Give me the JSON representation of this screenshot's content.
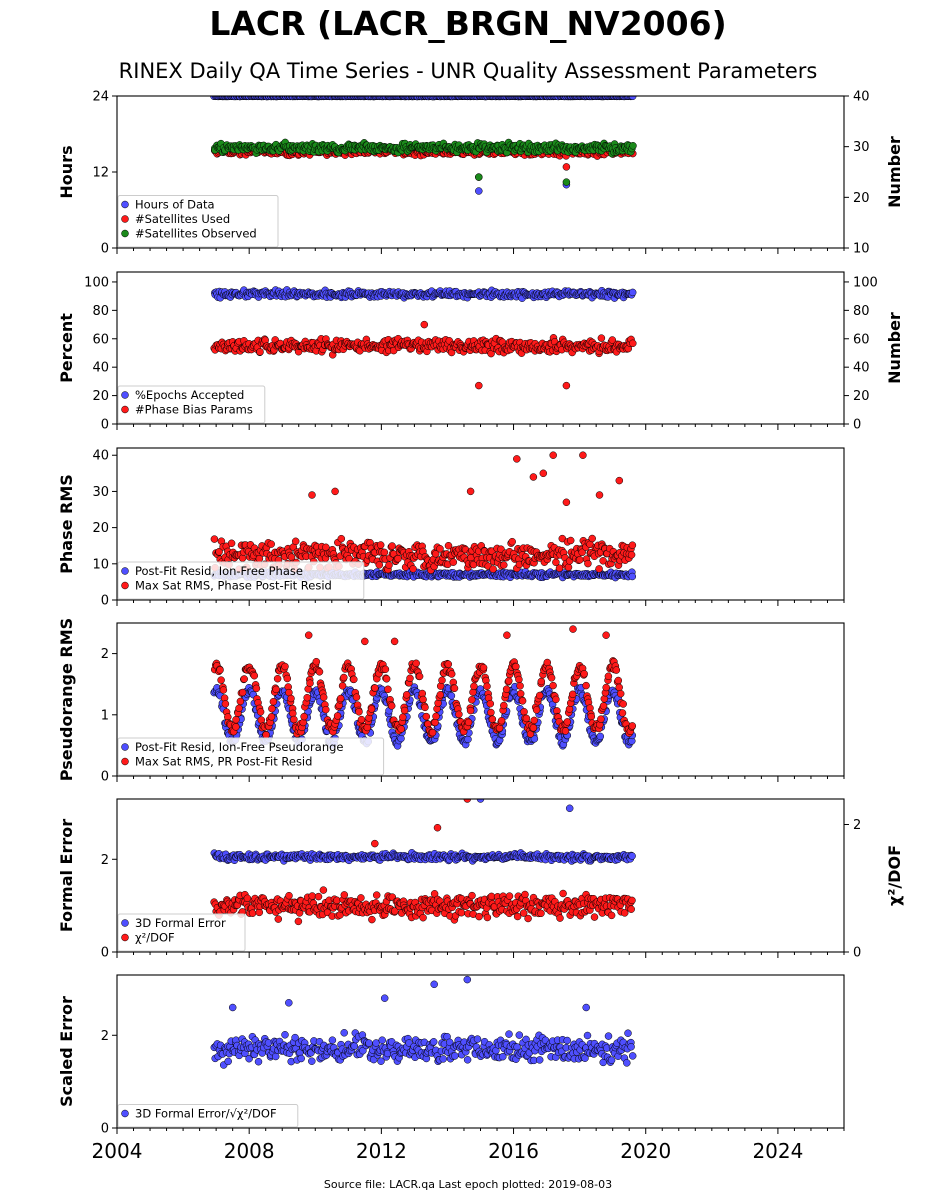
{
  "title": "LACR (LACR_BRGN_NV2006)",
  "subtitle": "RINEX Daily QA Time Series - UNR Quality Assessment Parameters",
  "footer": "Source file: LACR.qa Last epoch plotted: 2019-08-03",
  "colors": {
    "blue": "#4f4fff",
    "red": "#ff1a1a",
    "green": "#1b8a1b",
    "edge": "#000000"
  },
  "chart_data": [
    {
      "type": "scatter",
      "ylabel": "Hours",
      "ylabel_right": "Number",
      "xlim": [
        2004,
        2026
      ],
      "ylim": [
        0,
        24
      ],
      "ylim_right": [
        10,
        40
      ],
      "yticks": [
        "0",
        "12",
        "24"
      ],
      "yticks_right": [
        "10",
        "20",
        "30",
        "40"
      ],
      "legend": "lower-left",
      "series": [
        {
          "name": "Hours of Data",
          "color": "blue",
          "axis": "left",
          "band": [
            23.9,
            24
          ],
          "outliers": [
            [
              2014.95,
              9
            ],
            [
              2017.6,
              10
            ]
          ]
        },
        {
          "name": "#Satellites Used",
          "color": "red",
          "axis": "right",
          "band": [
            28,
            30
          ],
          "outliers": [
            [
              2009.8,
              30
            ],
            [
              2014.95,
              24
            ],
            [
              2017.6,
              26
            ]
          ]
        },
        {
          "name": "#Satellites Observed",
          "color": "green",
          "axis": "right",
          "band": [
            28.5,
            31
          ],
          "outliers": [
            [
              2014.95,
              24
            ],
            [
              2017.6,
              23
            ]
          ]
        }
      ]
    },
    {
      "type": "scatter",
      "ylabel": "Percent",
      "ylabel_right": "Number",
      "xlim": [
        2004,
        2026
      ],
      "ylim": [
        0,
        107
      ],
      "ylim_right": [
        0,
        107
      ],
      "yticks": [
        "0",
        "20",
        "40",
        "60",
        "80",
        "100"
      ],
      "yticks_right": [
        "0",
        "20",
        "40",
        "60",
        "80",
        "100"
      ],
      "legend": "lower-left",
      "series": [
        {
          "name": "%Epochs Accepted",
          "color": "blue",
          "axis": "left",
          "band": [
            88,
            95
          ],
          "outliers": []
        },
        {
          "name": "#Phase Bias Params",
          "color": "red",
          "axis": "right",
          "band": [
            48,
            62
          ],
          "outliers": [
            [
              2014.95,
              27
            ],
            [
              2017.6,
              27
            ],
            [
              2013.3,
              70
            ]
          ]
        }
      ]
    },
    {
      "type": "scatter",
      "ylabel": "Phase RMS",
      "xlim": [
        2004,
        2026
      ],
      "ylim": [
        0,
        42
      ],
      "yticks": [
        "0",
        "10",
        "20",
        "30",
        "40"
      ],
      "legend": "lower-left",
      "series": [
        {
          "name": "Post-Fit Resid, Ion-Free Phase",
          "color": "blue",
          "band": [
            6,
            8
          ],
          "outliers": []
        },
        {
          "name": "Max Sat RMS, Phase Post-Fit Resid",
          "color": "red",
          "band": [
            7,
            18
          ],
          "outliers": [
            [
              2009.9,
              29
            ],
            [
              2010.6,
              30
            ],
            [
              2014.7,
              30
            ],
            [
              2016.1,
              39
            ],
            [
              2016.6,
              34
            ],
            [
              2016.9,
              35
            ],
            [
              2017.2,
              40
            ],
            [
              2017.6,
              27
            ],
            [
              2018.1,
              40
            ],
            [
              2018.6,
              29
            ],
            [
              2019.2,
              33
            ]
          ]
        }
      ]
    },
    {
      "type": "scatter",
      "ylabel": "Pseudorange RMS",
      "xlim": [
        2004,
        2026
      ],
      "ylim": [
        0,
        2.5
      ],
      "yticks": [
        "0",
        "1",
        "2"
      ],
      "legend": "lower-left",
      "series": [
        {
          "name": "Post-Fit Resid, Ion-Free Pseudorange",
          "color": "blue",
          "seasonal": [
            0.55,
            1.4
          ],
          "outliers": []
        },
        {
          "name": "Max Sat RMS, PR Post-Fit Resid",
          "color": "red",
          "seasonal": [
            0.75,
            1.8
          ],
          "outliers": [
            [
              2009.8,
              2.3
            ],
            [
              2011.5,
              2.2
            ],
            [
              2012.4,
              2.2
            ],
            [
              2015.8,
              2.3
            ],
            [
              2017.8,
              2.4
            ],
            [
              2018.8,
              2.3
            ]
          ]
        }
      ]
    },
    {
      "type": "scatter",
      "ylabel": "Formal Error",
      "ylabel_right": "χ²/DOF",
      "xlim": [
        2004,
        2026
      ],
      "ylim": [
        0,
        3.3
      ],
      "ylim_right": [
        0,
        2.4
      ],
      "yticks": [
        "0",
        "2"
      ],
      "yticks_right": [
        "0",
        "2"
      ],
      "legend": "lower-left",
      "series": [
        {
          "name": "3D Formal Error",
          "color": "blue",
          "axis": "left",
          "band": [
            1.95,
            2.15
          ],
          "outliers": [
            [
              2015.0,
              3.3
            ],
            [
              2017.7,
              3.1
            ]
          ]
        },
        {
          "name": "χ²/DOF",
          "color": "red",
          "axis": "right",
          "band": [
            0.45,
            1.0
          ],
          "outliers": [
            [
              2014.6,
              2.4
            ],
            [
              2013.7,
              1.95
            ],
            [
              2011.8,
              1.7
            ]
          ]
        }
      ]
    },
    {
      "type": "scatter",
      "ylabel": "Scaled Error",
      "xlim": [
        2004,
        2026
      ],
      "ylim": [
        0,
        3.3
      ],
      "yticks": [
        "0",
        "2"
      ],
      "xticks": [
        "2004",
        "2008",
        "2012",
        "2016",
        "2020",
        "2024"
      ],
      "legend": "lower-left",
      "series": [
        {
          "name": "3D Formal Error/√χ²/DOF",
          "color": "blue",
          "band": [
            1.3,
            2.1
          ],
          "outliers": [
            [
              2007.5,
              2.6
            ],
            [
              2009.2,
              2.7
            ],
            [
              2012.1,
              2.8
            ],
            [
              2013.6,
              3.1
            ],
            [
              2014.6,
              3.2
            ],
            [
              2018.2,
              2.6
            ]
          ]
        }
      ]
    }
  ]
}
